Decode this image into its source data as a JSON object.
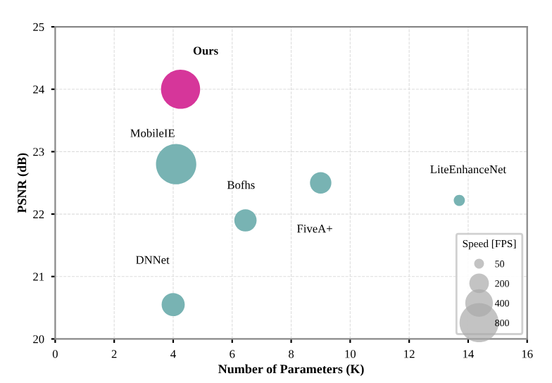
{
  "chart_data": {
    "type": "bubble",
    "xlabel": "Number of Parameters (K)",
    "ylabel": "PSNR (dB)",
    "series": [
      {
        "name": "Ours",
        "color": "#d6369a",
        "x": [
          4.25
        ],
        "values": [
          24.0
        ],
        "sizes": [
          800
        ]
      },
      {
        "name": "MobileIE",
        "color": "#78b3b3",
        "x": [
          4.1
        ],
        "values": [
          22.8
        ],
        "sizes": [
          850
        ]
      },
      {
        "name": "Bofhs",
        "color": "#78b3b3",
        "x": [
          6.45
        ],
        "values": [
          21.9
        ],
        "sizes": [
          260
        ]
      },
      {
        "name": "LiteEnhanceNet",
        "color": "#78b3b3",
        "x": [
          13.7
        ],
        "values": [
          22.22
        ],
        "sizes": [
          65
        ]
      },
      {
        "name": "FiveA+",
        "color": "#78b3b3",
        "x": [
          9.0
        ],
        "values": [
          22.5
        ],
        "sizes": [
          240
        ]
      },
      {
        "name": "DNNet",
        "color": "#78b3b3",
        "x": [
          4.0
        ],
        "values": [
          20.55
        ],
        "sizes": [
          280
        ]
      }
    ],
    "size_legend": [
      50,
      200,
      400,
      800
    ],
    "legend_title": "Speed [FPS]",
    "xlim": [
      0,
      16
    ],
    "xticks": [
      0,
      2,
      4,
      6,
      8,
      10,
      12,
      14,
      16
    ],
    "ylim": [
      20,
      25
    ],
    "yticks": [
      20,
      21,
      22,
      23,
      24,
      25
    ],
    "grid": true
  }
}
